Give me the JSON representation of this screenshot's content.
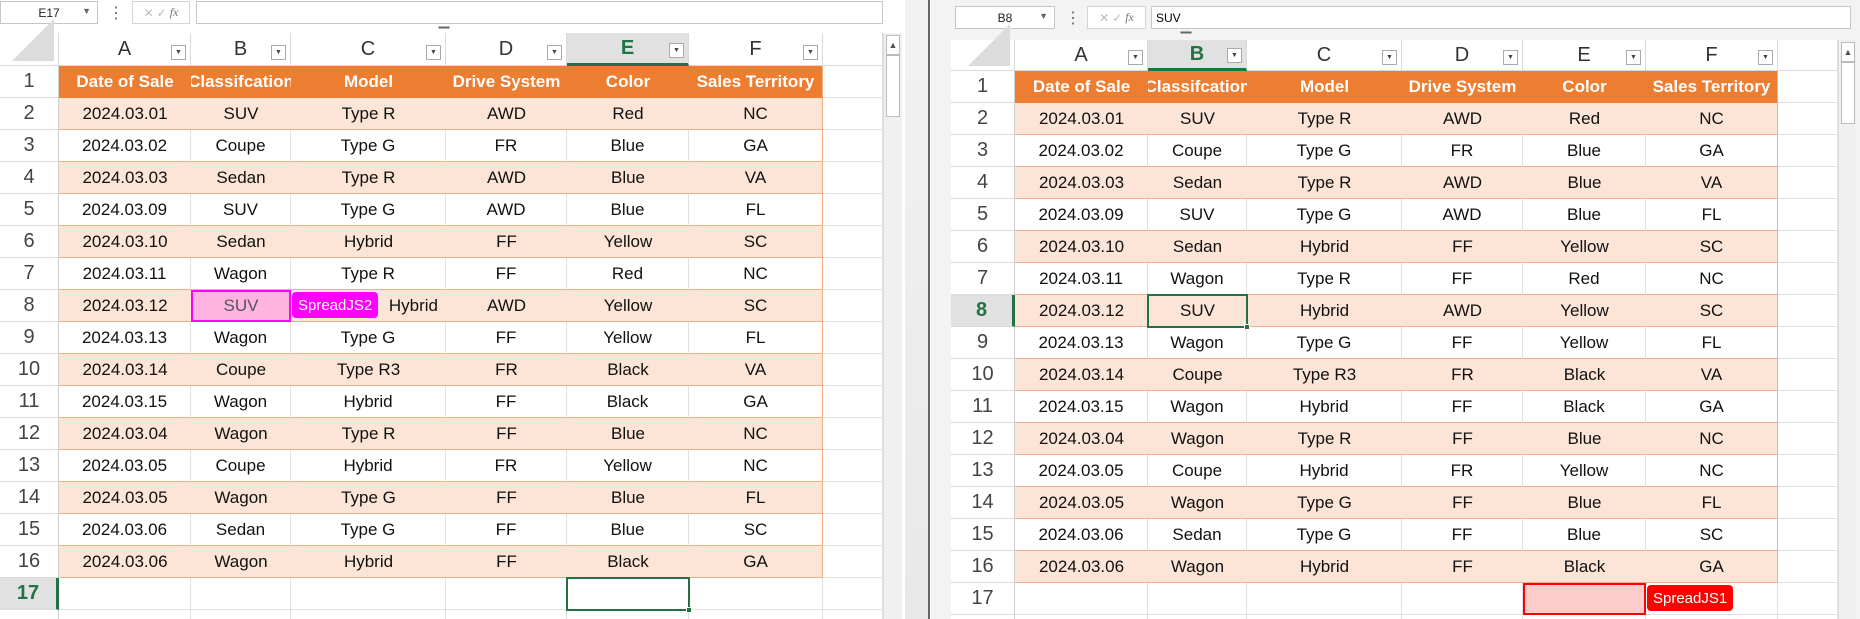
{
  "columns": [
    "A",
    "B",
    "C",
    "D",
    "E",
    "F"
  ],
  "row_numbers": [
    "1",
    "2",
    "3",
    "4",
    "5",
    "6",
    "7",
    "8",
    "9",
    "10",
    "11",
    "12",
    "13",
    "14",
    "15",
    "16",
    "17"
  ],
  "table": {
    "headers": [
      "Date of Sale",
      "Classifcation",
      "Model",
      "Drive System",
      "Color",
      "Sales Territory"
    ],
    "rows": [
      [
        "2024.03.01",
        "SUV",
        "Type R",
        "AWD",
        "Red",
        "NC"
      ],
      [
        "2024.03.02",
        "Coupe",
        "Type G",
        "FR",
        "Blue",
        "GA"
      ],
      [
        "2024.03.03",
        "Sedan",
        "Type R",
        "AWD",
        "Blue",
        "VA"
      ],
      [
        "2024.03.09",
        "SUV",
        "Type G",
        "AWD",
        "Blue",
        "FL"
      ],
      [
        "2024.03.10",
        "Sedan",
        "Hybrid",
        "FF",
        "Yellow",
        "SC"
      ],
      [
        "2024.03.11",
        "Wagon",
        "Type R",
        "FF",
        "Red",
        "NC"
      ],
      [
        "2024.03.12",
        "SUV",
        "Hybrid",
        "AWD",
        "Yellow",
        "SC"
      ],
      [
        "2024.03.13",
        "Wagon",
        "Type G",
        "FF",
        "Yellow",
        "FL"
      ],
      [
        "2024.03.14",
        "Coupe",
        "Type R3",
        "FR",
        "Black",
        "VA"
      ],
      [
        "2024.03.15",
        "Wagon",
        "Hybrid",
        "FF",
        "Black",
        "GA"
      ],
      [
        "2024.03.04",
        "Wagon",
        "Type R",
        "FF",
        "Blue",
        "NC"
      ],
      [
        "2024.03.05",
        "Coupe",
        "Hybrid",
        "FR",
        "Yellow",
        "NC"
      ],
      [
        "2024.03.05",
        "Wagon",
        "Type G",
        "FF",
        "Blue",
        "FL"
      ],
      [
        "2024.03.06",
        "Sedan",
        "Type G",
        "FF",
        "Blue",
        "SC"
      ],
      [
        "2024.03.06",
        "Wagon",
        "Hybrid",
        "FF",
        "Black",
        "GA"
      ]
    ]
  },
  "left": {
    "name_box": "E17",
    "formula": "",
    "selected_cell": "E17",
    "remote_user": {
      "label": "SpreadJS2",
      "cell": "B8",
      "color": "#FF00FF",
      "fill": "#FFB3E0"
    }
  },
  "right": {
    "name_box": "B8",
    "formula": "SUV",
    "selected_cell": "B8",
    "remote_user": {
      "label": "SpreadJS1",
      "cell": "E17",
      "color": "#FF0000",
      "fill": "#FFCCCC"
    }
  },
  "formula_icons": {
    "cancel": "✕",
    "enter": "✓",
    "fx": "fx"
  },
  "colors": {
    "header": "#ED7D31",
    "band": "#FCE4D6",
    "border": "#F4B084",
    "selection": "#217346"
  }
}
